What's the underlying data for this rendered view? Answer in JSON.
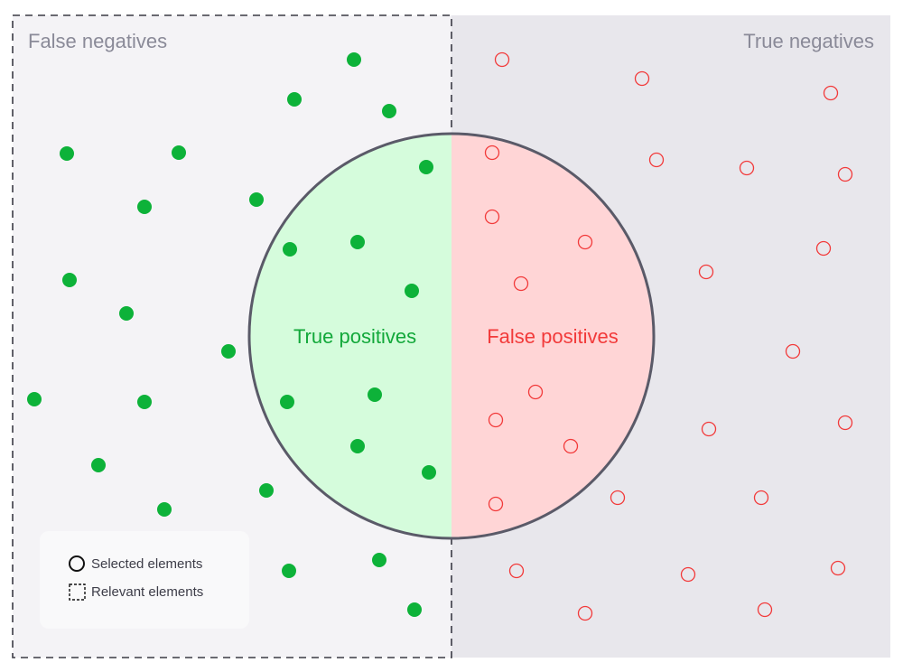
{
  "regions": {
    "false_negatives": "False negatives",
    "true_negatives": "True negatives",
    "true_positives": "True positives",
    "false_positives": "False positives"
  },
  "legend": {
    "selected": "Selected elements",
    "relevant": "Relevant elements"
  },
  "colors": {
    "relevant_bg": "#f4f3f6",
    "irrelevant_bg": "#e8e7ec",
    "true_positive_fill": "#d5fcdc",
    "false_positive_fill": "#ffd5d6",
    "positive_dot": "#0db239",
    "negative_dot": "#f23a3a",
    "circle_stroke": "#5a5a68",
    "tp_text": "#12a83a",
    "fp_text": "#f23a3a",
    "legend_bg": "#f9f9fa"
  }
}
